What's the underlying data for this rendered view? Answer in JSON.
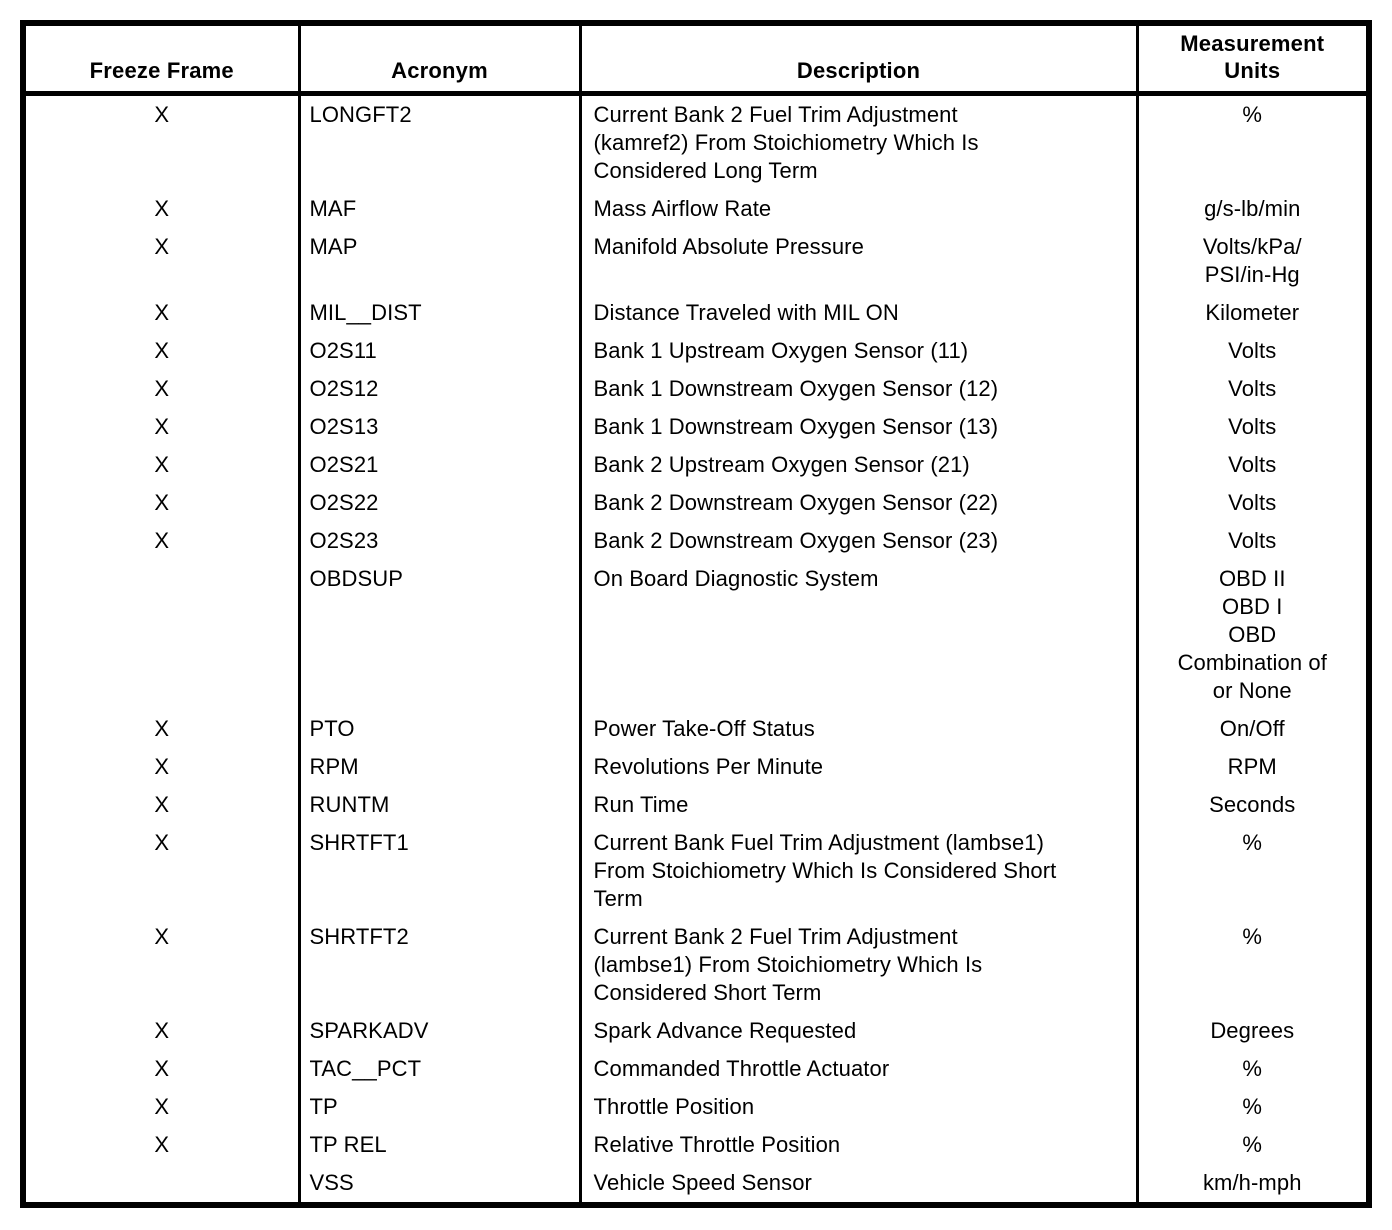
{
  "page": {
    "background_color": "#ffffff",
    "text_color": "#000000",
    "border_color": "#000000"
  },
  "table": {
    "columns": [
      {
        "label": "Freeze Frame"
      },
      {
        "label": "Acronym"
      },
      {
        "label": "Description"
      },
      {
        "label": "Measurement Units"
      }
    ],
    "freeze_frame_mark": "X",
    "rows": [
      {
        "freeze_frame": "X",
        "acronym": "LONGFT2",
        "description": "Current Bank 2 Fuel Trim Adjustment\n(kamref2) From Stoichiometry Which Is\nConsidered Long Term",
        "units": "%"
      },
      {
        "freeze_frame": "X",
        "acronym": "MAF",
        "description": "Mass Airflow Rate",
        "units": "g/s-lb/min"
      },
      {
        "freeze_frame": "X",
        "acronym": "MAP",
        "description": "Manifold Absolute Pressure",
        "units": "Volts/kPa/\nPSI/in-Hg"
      },
      {
        "freeze_frame": "X",
        "acronym": "MIL__DIST",
        "description": "Distance Traveled with MIL ON",
        "units": "Kilometer"
      },
      {
        "freeze_frame": "X",
        "acronym": "O2S11",
        "description": "Bank 1 Upstream Oxygen Sensor (11)",
        "units": "Volts"
      },
      {
        "freeze_frame": "X",
        "acronym": "O2S12",
        "description": "Bank 1 Downstream Oxygen Sensor (12)",
        "units": "Volts"
      },
      {
        "freeze_frame": "X",
        "acronym": "O2S13",
        "description": "Bank 1 Downstream Oxygen Sensor (13)",
        "units": "Volts"
      },
      {
        "freeze_frame": "X",
        "acronym": "O2S21",
        "description": "Bank 2 Upstream Oxygen Sensor (21)",
        "units": "Volts"
      },
      {
        "freeze_frame": "X",
        "acronym": "O2S22",
        "description": "Bank 2 Downstream Oxygen Sensor (22)",
        "units": "Volts"
      },
      {
        "freeze_frame": "X",
        "acronym": "O2S23",
        "description": "Bank 2 Downstream Oxygen Sensor (23)",
        "units": "Volts"
      },
      {
        "freeze_frame": "",
        "acronym": "OBDSUP",
        "description": "On Board Diagnostic System",
        "units": "OBD II\nOBD I\nOBD\nCombination of\nor None"
      },
      {
        "freeze_frame": "X",
        "acronym": "PTO",
        "description": "Power Take-Off Status",
        "units": "On/Off"
      },
      {
        "freeze_frame": "X",
        "acronym": "RPM",
        "description": "Revolutions Per Minute",
        "units": "RPM"
      },
      {
        "freeze_frame": "X",
        "acronym": "RUNTM",
        "description": "Run Time",
        "units": "Seconds"
      },
      {
        "freeze_frame": "X",
        "acronym": "SHRTFT1",
        "description": "Current Bank Fuel Trim Adjustment (lambse1)\nFrom Stoichiometry Which Is Considered Short\nTerm",
        "units": "%"
      },
      {
        "freeze_frame": "X",
        "acronym": "SHRTFT2",
        "description": "Current Bank 2 Fuel Trim Adjustment\n(lambse1) From Stoichiometry Which Is\nConsidered Short Term",
        "units": "%"
      },
      {
        "freeze_frame": "X",
        "acronym": "SPARKADV",
        "description": "Spark Advance Requested",
        "units": "Degrees"
      },
      {
        "freeze_frame": "X",
        "acronym": "TAC__PCT",
        "description": "Commanded Throttle Actuator",
        "units": "%"
      },
      {
        "freeze_frame": "X",
        "acronym": "TP",
        "description": "Throttle Position",
        "units": "%"
      },
      {
        "freeze_frame": "X",
        "acronym": "TP REL",
        "description": "Relative Throttle Position",
        "units": "%"
      },
      {
        "freeze_frame": "",
        "acronym": "VSS",
        "description": "Vehicle Speed Sensor",
        "units": "km/h-mph"
      }
    ]
  }
}
